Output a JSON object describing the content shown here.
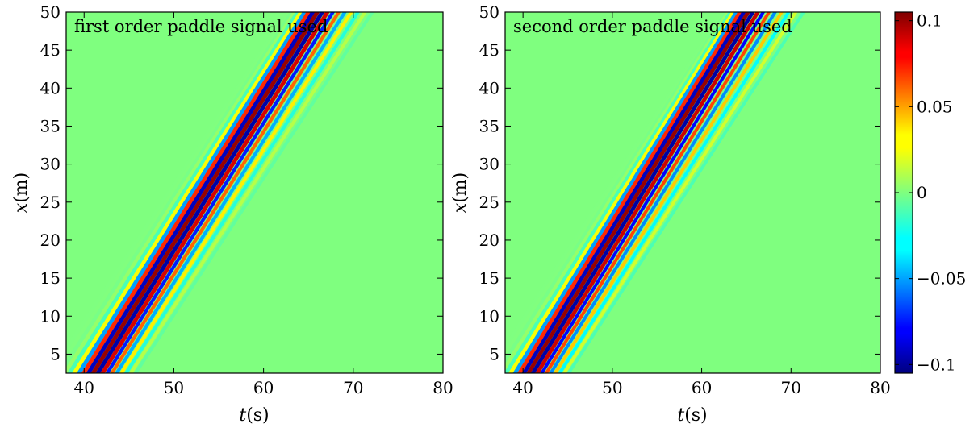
{
  "chart_data": [
    {
      "type": "heatmap",
      "annotation": "first order paddle signal used",
      "xlabel_var": "t",
      "xlabel_unit": "(s)",
      "ylabel_var": "x",
      "ylabel_unit": "(m)",
      "xlim": [
        38,
        80
      ],
      "ylim": [
        2.5,
        50
      ],
      "xticks": [
        40,
        50,
        60,
        70,
        80
      ],
      "yticks": [
        5,
        10,
        15,
        20,
        25,
        30,
        35,
        40,
        45,
        50
      ],
      "wave": {
        "t0": 41.0,
        "x0": 2.5,
        "t1": 66.0,
        "x1": 50.0,
        "period": 1.05,
        "group_width": 1.6,
        "dispersion_tail": 0.55
      }
    },
    {
      "type": "heatmap",
      "annotation": "second order paddle signal used",
      "xlabel_var": "t",
      "xlabel_unit": "(s)",
      "ylabel_var": "x",
      "ylabel_unit": "(m)",
      "xlim": [
        38,
        80
      ],
      "ylim": [
        2.5,
        50
      ],
      "xticks": [
        40,
        50,
        60,
        70,
        80
      ],
      "yticks": [
        5,
        10,
        15,
        20,
        25,
        30,
        35,
        40,
        45,
        50
      ],
      "wave": {
        "t0": 40.6,
        "x0": 2.5,
        "t1": 65.2,
        "x1": 50.0,
        "period": 1.0,
        "group_width": 1.6,
        "dispersion_tail": 0.7
      }
    }
  ],
  "colorbar": {
    "colormap": "jet",
    "range": [
      -0.105,
      0.105
    ],
    "ticks": [
      0.1,
      0.05,
      0,
      -0.05,
      -0.1
    ],
    "tick_labels": [
      "0.1",
      "0.05",
      "0",
      "−0.05",
      "−0.1"
    ]
  }
}
